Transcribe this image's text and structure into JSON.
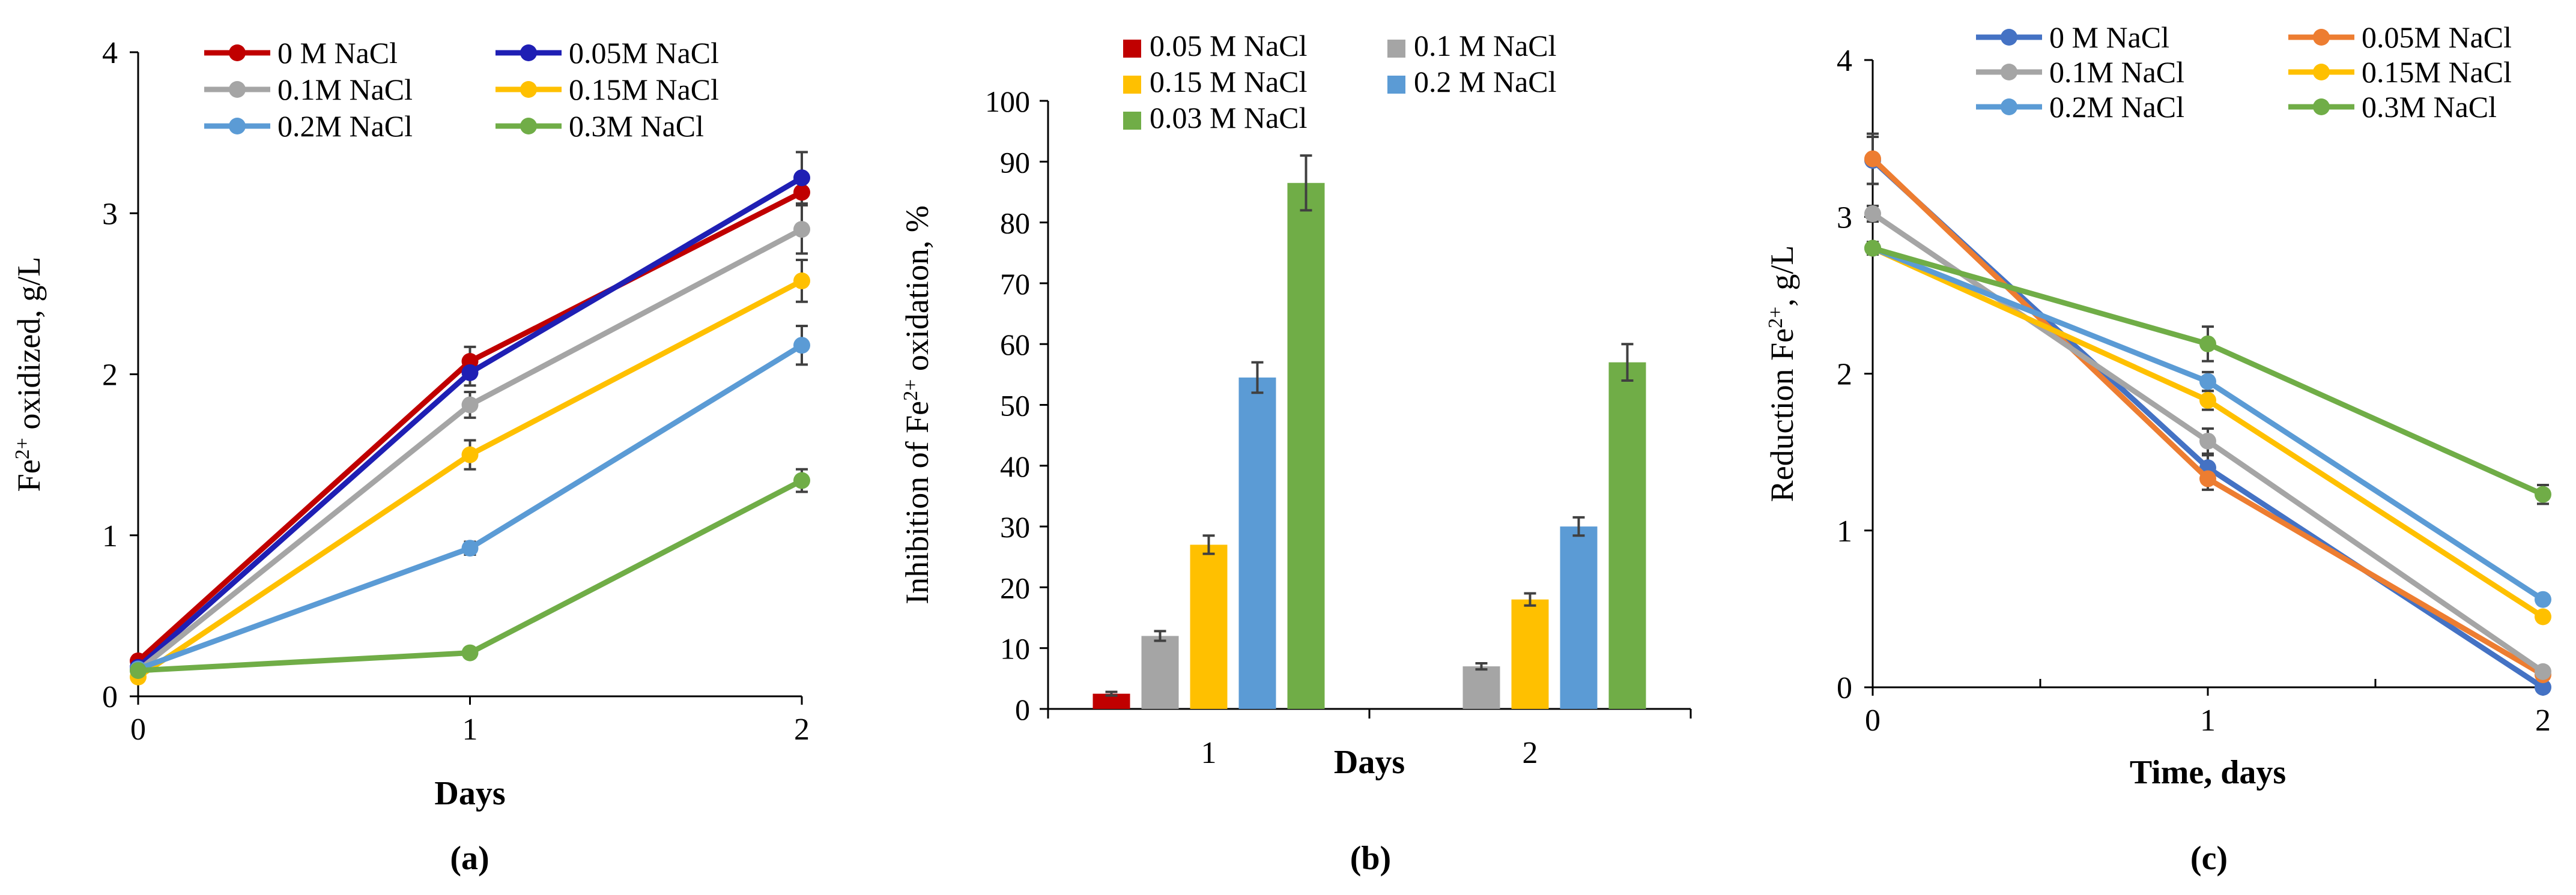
{
  "chart_data": [
    {
      "panel": "a",
      "panel_label": "(a)",
      "type": "line",
      "xlabel": "Days",
      "ylabel": "Fe²⁺ oxidized, g/L",
      "ylabel_main": "Fe",
      "ylabel_sup": "2+",
      "ylabel_rest": " oxidized, g/L",
      "x": [
        0,
        1,
        2
      ],
      "xlim": [
        0,
        2
      ],
      "ylim": [
        0,
        4
      ],
      "xticks": [
        0,
        1,
        2
      ],
      "yticks": [
        0,
        1,
        2,
        3,
        4
      ],
      "legend_placement": "top",
      "series": [
        {
          "name": "0 M NaCl",
          "color": "#C00000",
          "values": [
            0.22,
            2.08,
            3.13
          ],
          "errors": [
            0.02,
            0.09,
            0.08
          ]
        },
        {
          "name": "0.05M NaCl",
          "color": "#1F1FB4",
          "values": [
            0.18,
            2.01,
            3.22
          ],
          "errors": [
            0.02,
            0.08,
            0.16
          ]
        },
        {
          "name": "0.1M NaCl",
          "color": "#A5A5A5",
          "values": [
            0.16,
            1.81,
            2.9
          ],
          "errors": [
            0.02,
            0.08,
            0.15
          ]
        },
        {
          "name": "0.15M NaCl",
          "color": "#FFC000",
          "values": [
            0.12,
            1.5,
            2.58
          ],
          "errors": [
            0.02,
            0.09,
            0.13
          ]
        },
        {
          "name": "0.2M NaCl",
          "color": "#5B9BD5",
          "values": [
            0.17,
            0.92,
            2.18
          ],
          "errors": [
            0.02,
            0.04,
            0.12
          ]
        },
        {
          "name": "0.3M NaCl",
          "color": "#70AD47",
          "values": [
            0.16,
            0.27,
            1.34
          ],
          "errors": [
            0.02,
            0.03,
            0.07
          ]
        }
      ]
    },
    {
      "panel": "b",
      "panel_label": "(b)",
      "type": "bar",
      "xlabel": "Days",
      "ylabel_main": "Inhibition of Fe",
      "ylabel_sup": "2+",
      "ylabel_rest": " oxidation, %",
      "categories": [
        "1",
        "2"
      ],
      "ylim": [
        0,
        100
      ],
      "yticks": [
        0,
        10,
        20,
        30,
        40,
        50,
        60,
        70,
        80,
        90,
        100
      ],
      "legend_placement": "top",
      "series": [
        {
          "name": "0.05 M NaCl",
          "color": "#C00000",
          "values": [
            2.5,
            0
          ],
          "errors": [
            0.3,
            0
          ]
        },
        {
          "name": "0.1 M NaCl",
          "color": "#A5A5A5",
          "values": [
            12,
            7
          ],
          "errors": [
            0.8,
            0.5
          ]
        },
        {
          "name": "0.15 M NaCl",
          "color": "#FFC000",
          "values": [
            27,
            18
          ],
          "errors": [
            1.5,
            1.0
          ]
        },
        {
          "name": "0.2 M NaCl",
          "color": "#5B9BD5",
          "values": [
            54.5,
            30
          ],
          "errors": [
            2.5,
            1.5
          ]
        },
        {
          "name": "0.03 M NaCl",
          "color": "#70AD47",
          "values": [
            86.5,
            57
          ],
          "errors": [
            4.5,
            3.0
          ]
        }
      ]
    },
    {
      "panel": "c",
      "panel_label": "(c)",
      "type": "line",
      "xlabel": "Time, days",
      "ylabel_main": "Reduction Fe",
      "ylabel_sup": "2+",
      "ylabel_rest": ", g/L",
      "x": [
        0,
        1,
        2
      ],
      "xlim": [
        0,
        2
      ],
      "ylim": [
        0,
        4
      ],
      "xticks": [
        0,
        1,
        2
      ],
      "yticks": [
        0,
        1,
        2,
        3,
        4
      ],
      "legend_placement": "top",
      "series": [
        {
          "name": "0 M NaCl",
          "color": "#4472C4",
          "values": [
            3.36,
            1.4,
            0.0
          ],
          "errors": [
            0.15,
            0.08,
            0.02
          ]
        },
        {
          "name": "0.05M NaCl",
          "color": "#ED7D31",
          "values": [
            3.37,
            1.33,
            0.08
          ],
          "errors": [
            0.16,
            0.07,
            0.02
          ]
        },
        {
          "name": "0.1M NaCl",
          "color": "#A5A5A5",
          "values": [
            3.02,
            1.57,
            0.1
          ],
          "errors": [
            0.05,
            0.08,
            0.02
          ]
        },
        {
          "name": "0.15M NaCl",
          "color": "#FFC000",
          "values": [
            2.8,
            1.83,
            0.45
          ],
          "errors": [
            0.04,
            0.06,
            0.02
          ]
        },
        {
          "name": "0.2M NaCl",
          "color": "#5B9BD5",
          "values": [
            2.8,
            1.95,
            0.56
          ],
          "errors": [
            0.04,
            0.06,
            0.02
          ]
        },
        {
          "name": "0.3M NaCl",
          "color": "#70AD47",
          "values": [
            2.8,
            2.19,
            1.23
          ],
          "errors": [
            0.04,
            0.11,
            0.06
          ]
        }
      ]
    }
  ]
}
